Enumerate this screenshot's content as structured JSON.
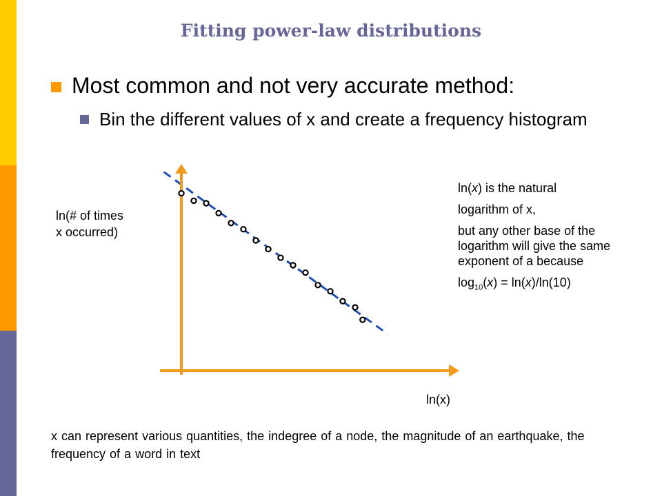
{
  "colors": {
    "bar_top": "#ffcc00",
    "bar_middle": "#ff9900",
    "bar_bottom": "#666699",
    "title": "#666699",
    "bullet_main": "#ff9900",
    "bullet_sub": "#666699",
    "axes": "#f29a1a",
    "fit_line": "#1f4fb4",
    "points": "#000000"
  },
  "slide": {
    "title": "Fitting power-law distributions",
    "bullet_main": "Most common and not very accurate method:",
    "bullet_sub": "Bin the different values of x and create a frequency histogram",
    "footer": "x can represent various quantities, the indegree of a node, the magnitude of an earthquake, the frequency of a word in text"
  },
  "axis_labels": {
    "y_line1": "ln(# of times",
    "y_line2": "x occurred)",
    "x": "ln(x)"
  },
  "note": {
    "line1": "is the natural",
    "line2": "logarithm of x,",
    "line3": "but any other base of the logarithm will give the same exponent of a because",
    "log_prefix": "log",
    "log_base": "10",
    "log_rest": " = ln(x)/ln(10)"
  },
  "chart_data": {
    "type": "scatter",
    "title": "",
    "xlabel": "ln(x)",
    "ylabel": "ln(# of times x occurred)",
    "points": [
      {
        "x": 0.0,
        "y": 14.3
      },
      {
        "x": 0.5,
        "y": 13.7
      },
      {
        "x": 1.0,
        "y": 13.5
      },
      {
        "x": 1.5,
        "y": 12.7
      },
      {
        "x": 2.0,
        "y": 11.9
      },
      {
        "x": 2.5,
        "y": 11.4
      },
      {
        "x": 3.0,
        "y": 10.5
      },
      {
        "x": 3.5,
        "y": 9.8
      },
      {
        "x": 4.0,
        "y": 9.1
      },
      {
        "x": 4.5,
        "y": 8.5
      },
      {
        "x": 5.0,
        "y": 7.9
      },
      {
        "x": 5.5,
        "y": 6.9
      },
      {
        "x": 6.0,
        "y": 6.4
      },
      {
        "x": 6.5,
        "y": 5.6
      },
      {
        "x": 7.0,
        "y": 5.1
      },
      {
        "x": 7.3,
        "y": 4.1
      }
    ],
    "fit_line": {
      "intercept": 15.0,
      "slope": -1.45
    },
    "xlim": [
      -1,
      12
    ],
    "ylim": [
      0,
      18
    ],
    "grid": false,
    "fit_style": "dashed"
  }
}
